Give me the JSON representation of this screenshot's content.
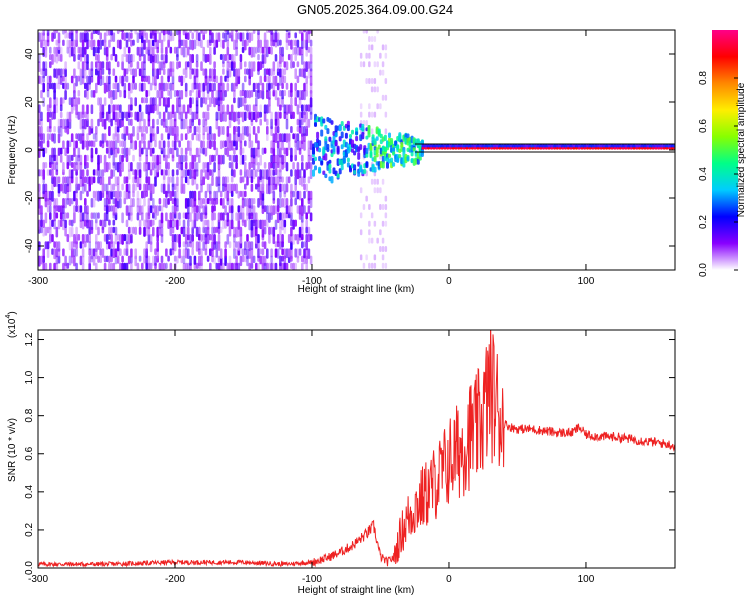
{
  "title": "GN05.2025.364.09.00.G24",
  "colors": {
    "snr_line": "#ee2222",
    "spectrogram_low": "#7a2cf0",
    "spectrogram_light": "#d8c2f8"
  },
  "chart_data": [
    {
      "type": "heatmap",
      "name": "spectrogram",
      "xlabel": "Height of straight line (km)",
      "ylabel": "Frequency (Hz)",
      "xlim": [
        -300,
        165
      ],
      "ylim": [
        -50,
        50
      ],
      "xticks": [
        -300,
        -200,
        -100,
        0,
        100
      ],
      "yticks": [
        -40,
        -20,
        0,
        20,
        40
      ],
      "colorbar": {
        "label": "Normalized spectral amplitude",
        "range": [
          0,
          1
        ],
        "ticks": [
          "0.0",
          "0.2",
          "0.4",
          "0.6",
          "0.8"
        ],
        "colormap": [
          "#ffffff",
          "#8800ff",
          "#0000ff",
          "#00ccff",
          "#00ff88",
          "#88ff00",
          "#ffee00",
          "#ff8800",
          "#ff0000",
          "#ff0088"
        ]
      },
      "features": [
        {
          "description": "scattered noise",
          "x_range": [
            -300,
            -100
          ],
          "freq_range": [
            -50,
            50
          ],
          "amplitude": 0.1
        },
        {
          "description": "residual noise band",
          "x_range": [
            -65,
            -45
          ],
          "freq_range": [
            -50,
            50
          ],
          "amplitude": 0.05
        },
        {
          "description": "signal onset",
          "x_range": [
            -100,
            -20
          ],
          "freq_center": 0,
          "amplitude": 0.4
        },
        {
          "description": "strong carrier line",
          "x_range": [
            -20,
            165
          ],
          "freq_center": 0,
          "amplitude": 0.95
        }
      ]
    },
    {
      "type": "line",
      "name": "snr",
      "xlabel": "Height of straight line (km)",
      "ylabel": "SNR (10 * v/v)",
      "y_multiplier": "(x10",
      "y_multiplier_exp": "4",
      "x_multiplier_close": ")",
      "xlim": [
        -300,
        165
      ],
      "ylim": [
        0,
        1.25
      ],
      "xticks": [
        -300,
        -200,
        -100,
        0,
        100
      ],
      "yticks": [
        "0.0",
        "0.2",
        "0.4",
        "0.6",
        "0.8",
        "1.0",
        "1.2"
      ],
      "x": [
        -300,
        -250,
        -200,
        -150,
        -120,
        -100,
        -90,
        -80,
        -70,
        -60,
        -55,
        -50,
        -45,
        -40,
        -35,
        -30,
        -25,
        -20,
        -15,
        -10,
        -5,
        0,
        5,
        10,
        15,
        20,
        25,
        30,
        35,
        40,
        45,
        50,
        60,
        70,
        80,
        90,
        95,
        100,
        110,
        120,
        130,
        140,
        150,
        160,
        165
      ],
      "values": [
        0.02,
        0.02,
        0.03,
        0.03,
        0.02,
        0.03,
        0.05,
        0.08,
        0.12,
        0.18,
        0.22,
        0.06,
        0.03,
        0.06,
        0.18,
        0.26,
        0.32,
        0.36,
        0.4,
        0.45,
        0.5,
        0.56,
        0.6,
        0.64,
        0.7,
        0.72,
        0.8,
        0.95,
        0.85,
        0.76,
        0.74,
        0.73,
        0.73,
        0.72,
        0.71,
        0.71,
        0.74,
        0.7,
        0.69,
        0.69,
        0.68,
        0.67,
        0.66,
        0.65,
        0.64
      ]
    }
  ]
}
